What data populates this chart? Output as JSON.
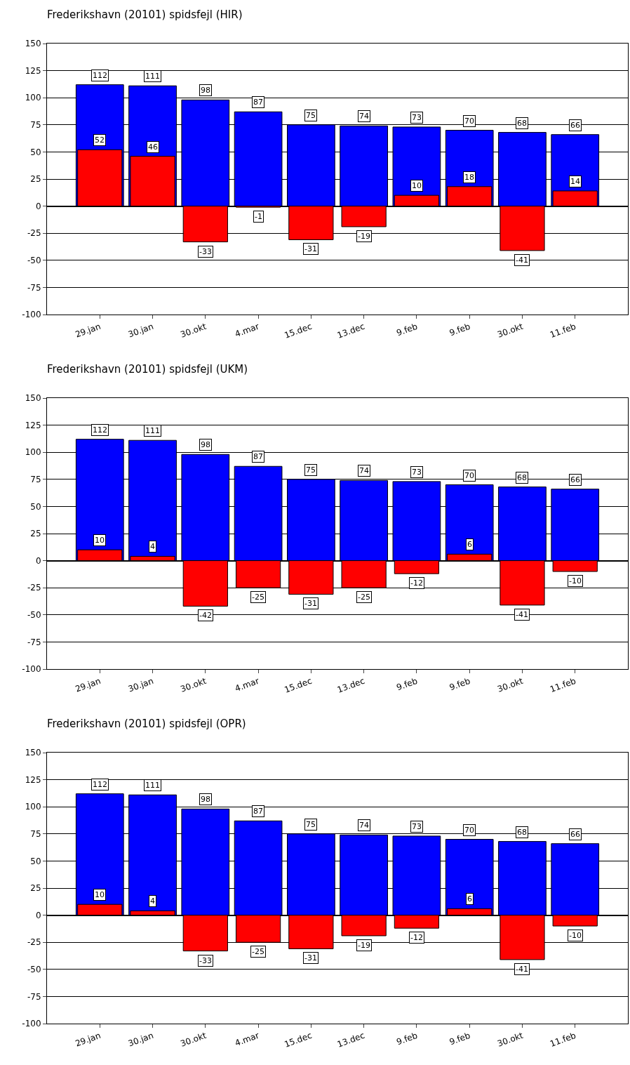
{
  "chart_data": [
    {
      "type": "bar",
      "title": "Frederikshavn (20101) spidsfejl (HIR)",
      "categories": [
        "29.jan",
        "30.jan",
        "30.okt",
        "4.mar",
        "15.dec",
        "13.dec",
        "9.feb",
        "9.feb",
        "30.okt",
        "11.feb"
      ],
      "series": [
        {
          "color": "#0000ff",
          "values": [
            112,
            111,
            98,
            87,
            75,
            74,
            73,
            70,
            68,
            66
          ]
        },
        {
          "color": "#ff0000",
          "values": [
            52,
            46,
            -33,
            -1,
            -31,
            -19,
            10,
            18,
            -41,
            14
          ]
        }
      ],
      "ylim": [
        -100,
        150
      ],
      "yticks": [
        -100,
        -75,
        -50,
        -25,
        0,
        25,
        50,
        75,
        100,
        125,
        150
      ],
      "grid": "y",
      "data_labels": true
    },
    {
      "type": "bar",
      "title": "Frederikshavn (20101) spidsfejl (UKM)",
      "categories": [
        "29.jan",
        "30.jan",
        "30.okt",
        "4.mar",
        "15.dec",
        "13.dec",
        "9.feb",
        "9.feb",
        "30.okt",
        "11.feb"
      ],
      "series": [
        {
          "color": "#0000ff",
          "values": [
            112,
            111,
            98,
            87,
            75,
            74,
            73,
            70,
            68,
            66
          ]
        },
        {
          "color": "#ff0000",
          "values": [
            10,
            4,
            -42,
            -25,
            -31,
            -25,
            -12,
            6,
            -41,
            -10
          ]
        }
      ],
      "ylim": [
        -100,
        150
      ],
      "yticks": [
        -100,
        -75,
        -50,
        -25,
        0,
        25,
        50,
        75,
        100,
        125,
        150
      ],
      "grid": "y",
      "data_labels": true
    },
    {
      "type": "bar",
      "title": "Frederikshavn (20101) spidsfejl (OPR)",
      "categories": [
        "29.jan",
        "30.jan",
        "30.okt",
        "4.mar",
        "15.dec",
        "13.dec",
        "9.feb",
        "9.feb",
        "30.okt",
        "11.feb"
      ],
      "series": [
        {
          "color": "#0000ff",
          "values": [
            112,
            111,
            98,
            87,
            75,
            74,
            73,
            70,
            68,
            66
          ]
        },
        {
          "color": "#ff0000",
          "values": [
            10,
            4,
            -33,
            -25,
            -31,
            -19,
            -12,
            6,
            -41,
            -10
          ]
        }
      ],
      "ylim": [
        -100,
        150
      ],
      "yticks": [
        -100,
        -75,
        -50,
        -25,
        0,
        25,
        50,
        75,
        100,
        125,
        150
      ],
      "grid": "y",
      "data_labels": true
    }
  ]
}
